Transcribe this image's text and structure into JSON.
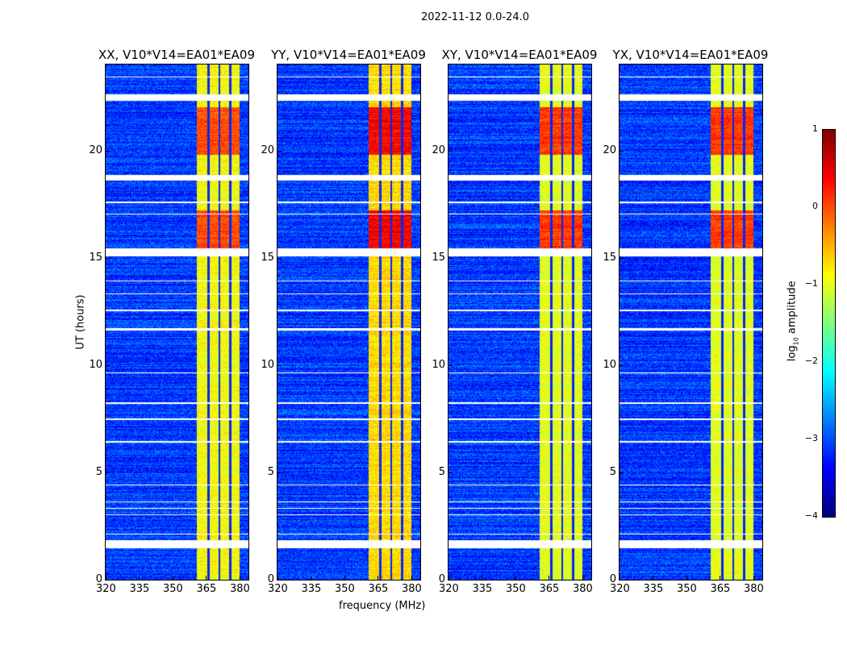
{
  "chart_data": {
    "type": "heatmap",
    "title": "2022-11-12 0.0-24.0",
    "xlabel": "frequency (MHz)",
    "ylabel": "UT (hours)",
    "xlim": [
      320,
      384
    ],
    "ylim": [
      0,
      24
    ],
    "xticks": [
      "320",
      "335",
      "350",
      "365",
      "380"
    ],
    "xtick_values": [
      320,
      335,
      350,
      365,
      380
    ],
    "yticks": [
      "0",
      "5",
      "10",
      "15",
      "20"
    ],
    "ytick_values": [
      0,
      5,
      10,
      15,
      20
    ],
    "colorbar": {
      "label_main": "log",
      "label_sub": "10",
      "label_rest": " amplitude",
      "range": [
        -4,
        1
      ],
      "ticks": [
        "1",
        "0",
        "−1",
        "−2",
        "−3",
        "−4"
      ],
      "tick_values": [
        1,
        0,
        -1,
        -2,
        -3,
        -4
      ],
      "colormap": "jet"
    },
    "panels": [
      {
        "title": "XX, V10*V14=EA01*EA09",
        "band_level": -0.9,
        "hot_level": 0.0
      },
      {
        "title": "YY, V10*V14=EA01*EA09",
        "band_level": -0.7,
        "hot_level": 0.4
      },
      {
        "title": "XY, V10*V14=EA01*EA09",
        "band_level": -1.0,
        "hot_level": 0.1
      },
      {
        "title": "YX, V10*V14=EA01*EA09",
        "band_level": -1.0,
        "hot_level": 0.1
      }
    ],
    "background_level": -3.1,
    "rfi_band_mhz": [
      361,
      380
    ],
    "band_gaps_mhz": [
      366,
      371,
      376
    ],
    "hot_periods_ut": [
      [
        15.4,
        17.2
      ],
      [
        19.8,
        22.0
      ]
    ],
    "flagged_ut": [
      [
        1.45,
        1.85
      ],
      [
        2.1,
        2.15
      ],
      [
        3.0,
        3.05
      ],
      [
        3.3,
        3.35
      ],
      [
        3.6,
        3.65
      ],
      [
        4.4,
        4.45
      ],
      [
        6.4,
        6.45
      ],
      [
        7.45,
        7.5
      ],
      [
        8.2,
        8.25
      ],
      [
        9.6,
        9.65
      ],
      [
        11.6,
        11.7
      ],
      [
        12.5,
        12.6
      ],
      [
        13.3,
        13.35
      ],
      [
        13.9,
        13.95
      ],
      [
        15.05,
        15.45
      ],
      [
        17.0,
        17.05
      ],
      [
        17.55,
        17.6
      ],
      [
        18.6,
        18.85
      ],
      [
        22.3,
        22.6
      ],
      [
        23.4,
        23.45
      ]
    ]
  }
}
